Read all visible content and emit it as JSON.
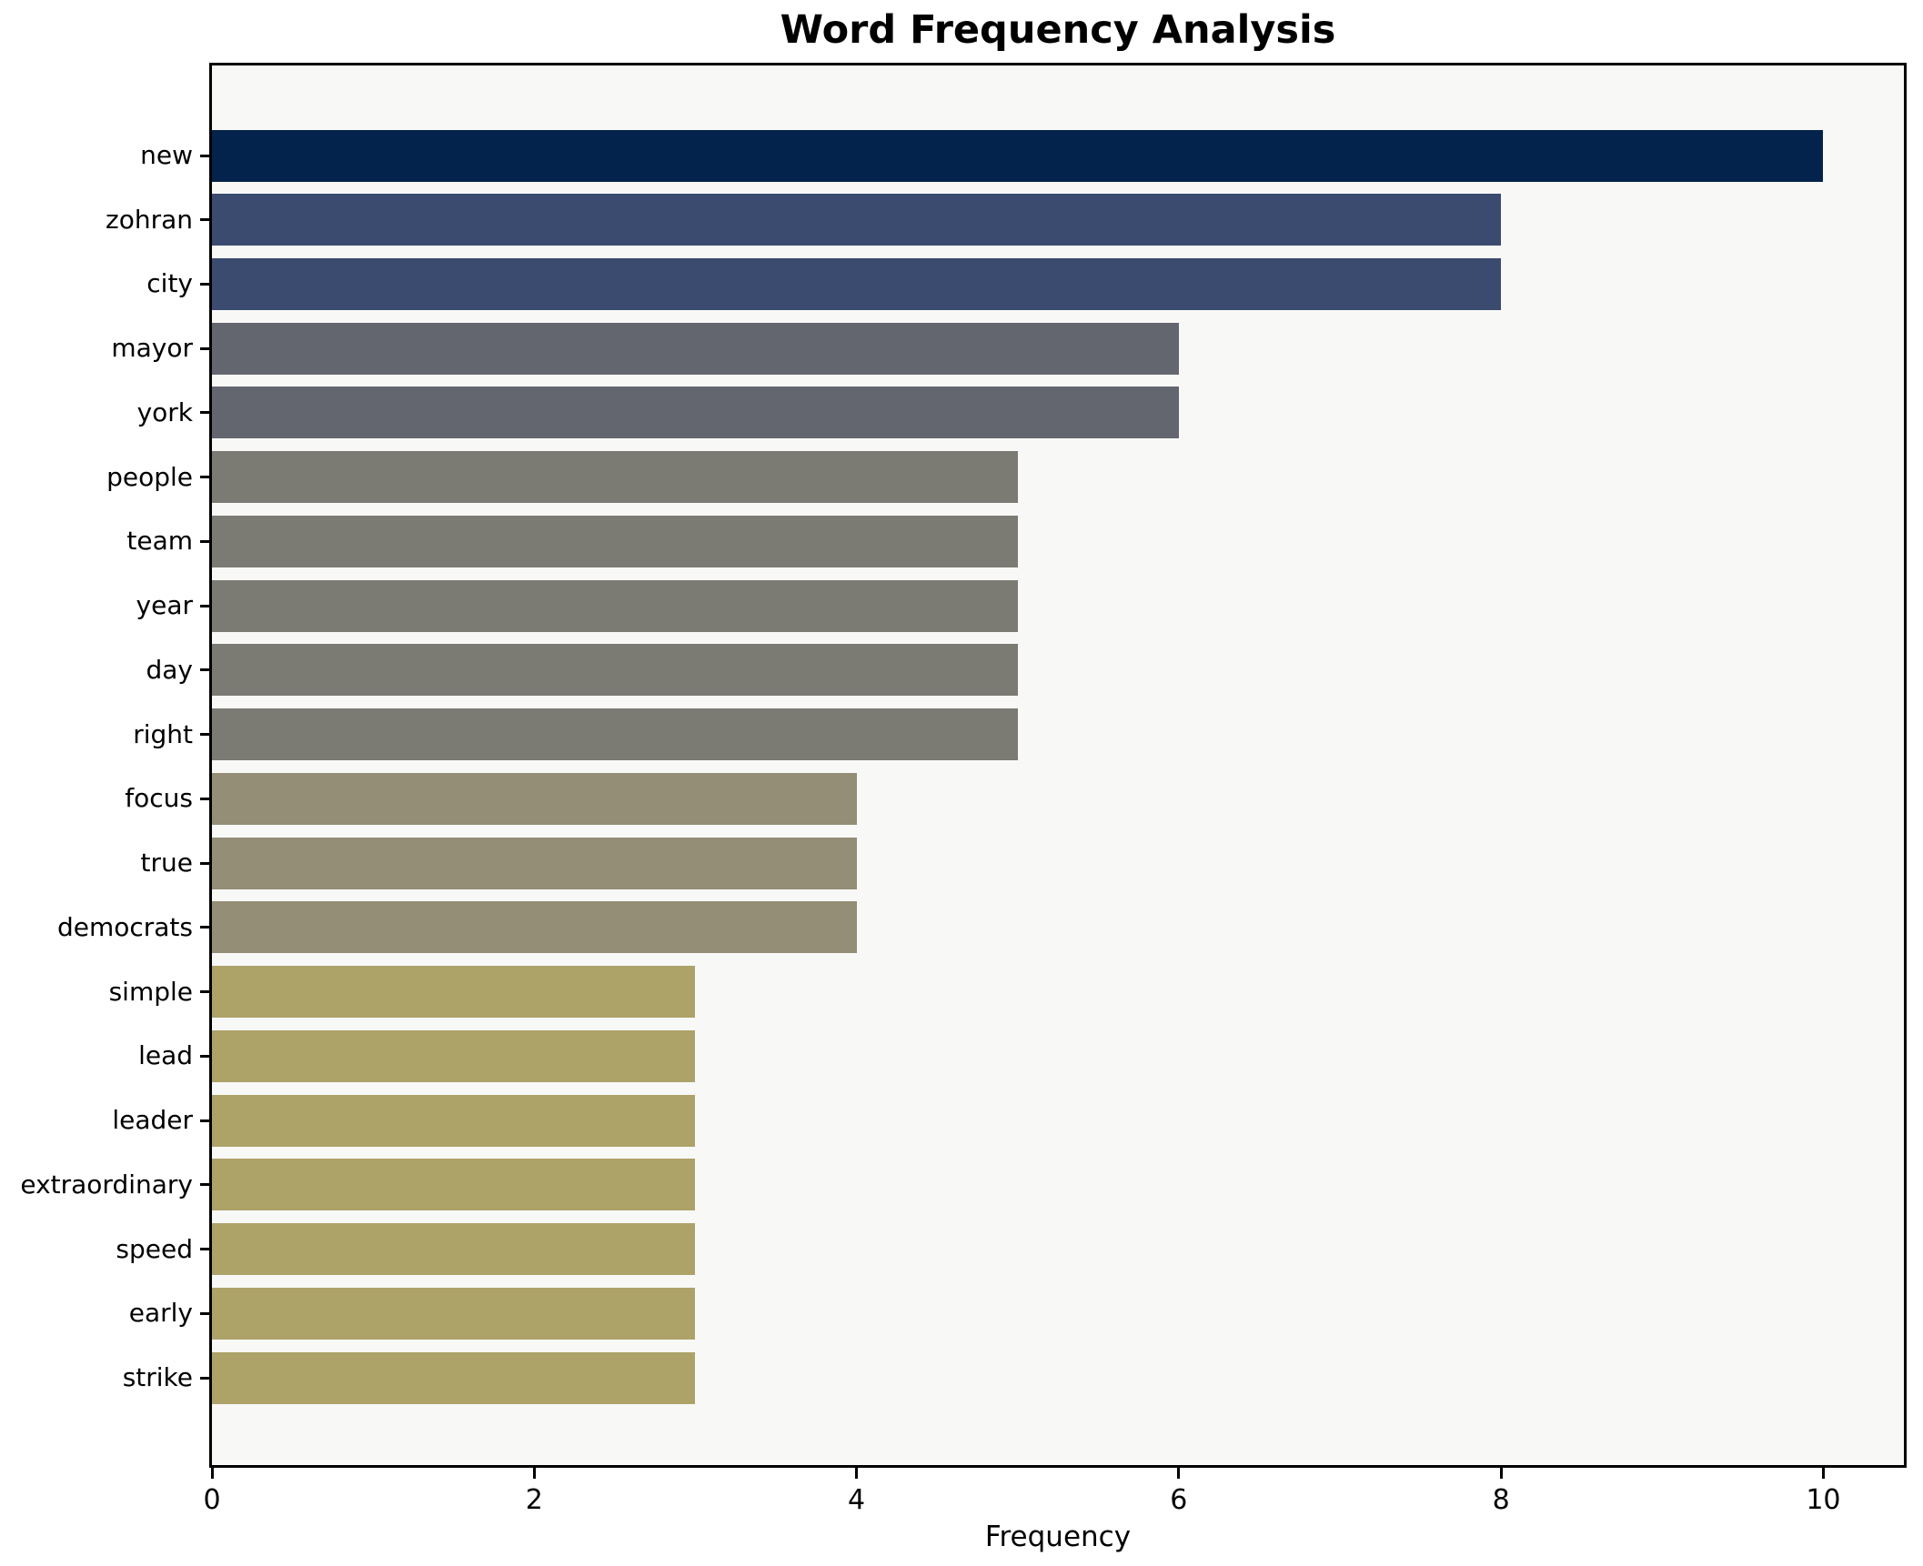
{
  "chart_data": {
    "type": "bar",
    "orientation": "horizontal",
    "title": "Word Frequency Analysis",
    "xlabel": "Frequency",
    "ylabel": "",
    "xlim": [
      0,
      10.5
    ],
    "xticks": [
      0,
      2,
      4,
      6,
      8,
      10
    ],
    "grid": false,
    "legend": "none",
    "plot_background": "#f8f8f7",
    "page_background": "#ffffff",
    "categories": [
      "new",
      "zohran",
      "city",
      "mayor",
      "york",
      "people",
      "team",
      "year",
      "day",
      "right",
      "focus",
      "true",
      "democrats",
      "simple",
      "lead",
      "leader",
      "extraordinary",
      "speed",
      "early",
      "strike"
    ],
    "values": [
      10,
      8,
      8,
      6,
      6,
      5,
      5,
      5,
      5,
      5,
      4,
      4,
      4,
      3,
      3,
      3,
      3,
      3,
      3,
      3
    ],
    "bar_colors": [
      "#04234c",
      "#3b4b6f",
      "#3b4b6f",
      "#64666f",
      "#64666f",
      "#7b7a73",
      "#7b7a73",
      "#7b7a73",
      "#7b7a73",
      "#7b7a73",
      "#938e75",
      "#938e75",
      "#938e75",
      "#ada268",
      "#ada268",
      "#ada268",
      "#ada268",
      "#ada268",
      "#ada268",
      "#ada268"
    ]
  }
}
